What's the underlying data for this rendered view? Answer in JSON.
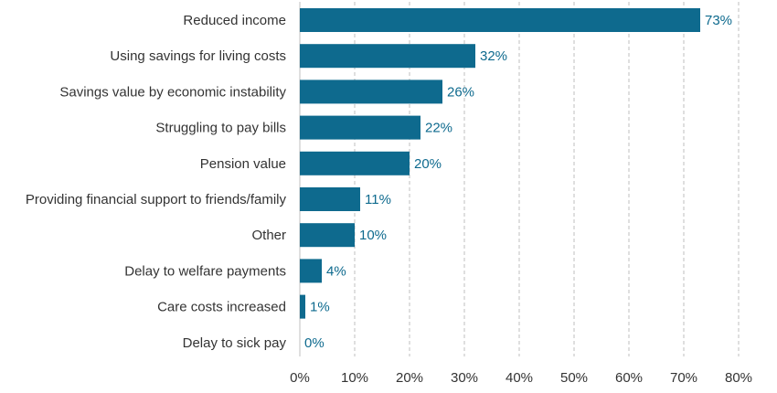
{
  "chart_data": {
    "type": "bar",
    "orientation": "horizontal",
    "categories": [
      "Reduced income",
      "Using savings for living costs",
      "Savings value by economic instability",
      "Struggling to pay bills",
      "Pension value",
      "Providing financial support to friends/family",
      "Other ",
      "Delay to welfare payments",
      "Care costs increased",
      "Delay to sick pay"
    ],
    "values": [
      73,
      32,
      26,
      22,
      20,
      11,
      10,
      4,
      1,
      0
    ],
    "value_labels": [
      "73%",
      "32%",
      "26%",
      "22%",
      "20%",
      "11%",
      "10%",
      "4%",
      "1%",
      "0%"
    ],
    "xlim": [
      0,
      80
    ],
    "x_ticks": [
      "0%",
      "10%",
      "20%",
      "30%",
      "40%",
      "50%",
      "60%",
      "70%",
      "80%"
    ],
    "title": "",
    "xlabel": "",
    "ylabel": "",
    "grid": "vertical dashed",
    "colors": {
      "bar": "#0e6a8e",
      "value_label": "#0e6a8e",
      "category_label": "#333333",
      "tick_label": "#333333",
      "grid": "#bfbfbf"
    }
  }
}
